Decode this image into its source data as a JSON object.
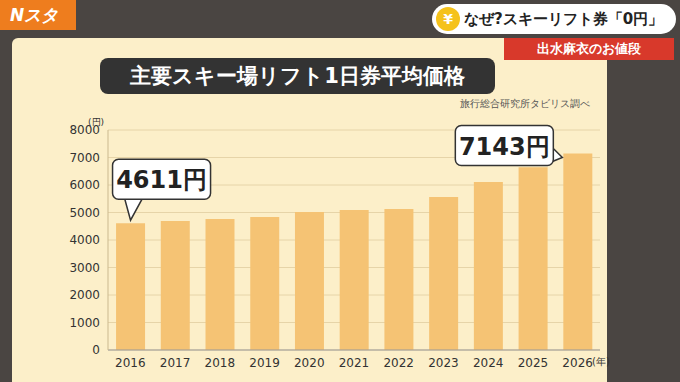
{
  "header": {
    "logo": "Nスタ",
    "icon": "¥",
    "headline": "なぜ?スキーリフト券「0円」",
    "segment": "出水麻衣のお値段"
  },
  "chart_data": {
    "type": "bar",
    "title": "主要スキー場リフト1日券平均価格",
    "source": "旅行総合研究所タビリス調べ",
    "y_label": "(円)",
    "x_label": "(年)",
    "categories": [
      "2016",
      "2017",
      "2018",
      "2019",
      "2020",
      "2021",
      "2022",
      "2023",
      "2024",
      "2025",
      "2026"
    ],
    "values": [
      4611,
      4690,
      4760,
      4840,
      5020,
      5090,
      5130,
      5560,
      6110,
      6650,
      7143
    ],
    "value_labels": [
      "4611円",
      null,
      null,
      null,
      null,
      null,
      null,
      null,
      null,
      null,
      "7143円"
    ],
    "color": "#f5c374",
    "ylim": [
      0,
      8000
    ],
    "yticks": [
      0,
      1000,
      2000,
      3000,
      4000,
      5000,
      6000,
      7000,
      8000
    ],
    "grid": true
  }
}
